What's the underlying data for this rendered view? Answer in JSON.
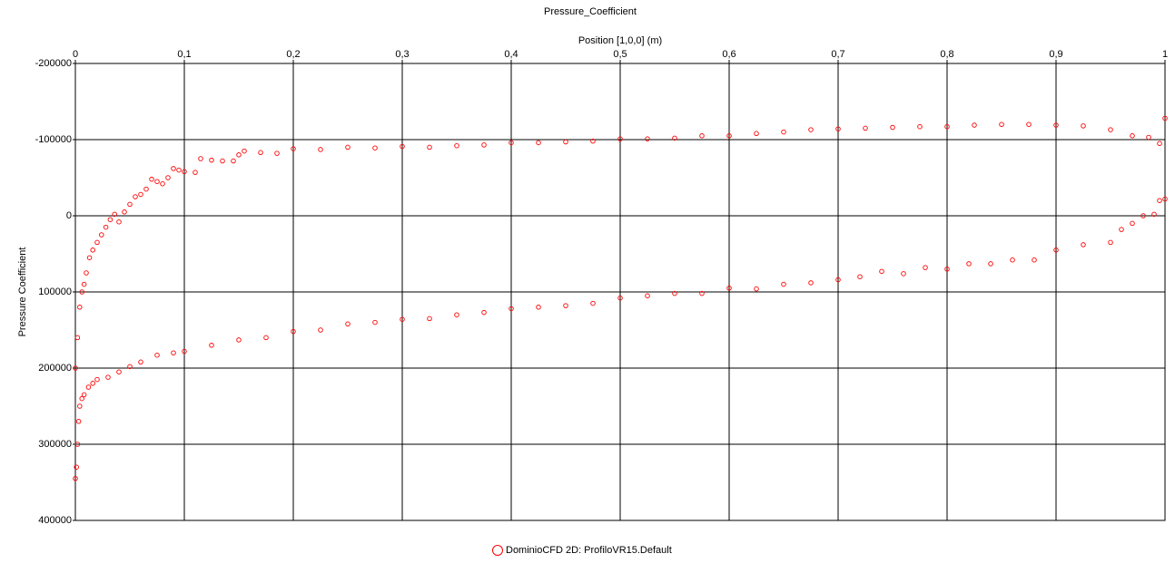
{
  "chart_data": {
    "type": "scatter",
    "title": "Pressure_Coefficient",
    "xlabel": "Position [1,0,0] (m)",
    "ylabel": "Pressure Coefficient",
    "xlim": [
      0,
      1
    ],
    "xticks": [
      0,
      {
        "value": 0.1,
        "label": "0,1"
      },
      {
        "value": 0.2,
        "label": "0,2"
      },
      {
        "value": 0.3,
        "label": "0,3"
      },
      {
        "value": 0.4,
        "label": "0,4"
      },
      {
        "value": 0.5,
        "label": "0,5"
      },
      {
        "value": 0.6,
        "label": "0,6"
      },
      {
        "value": 0.7,
        "label": "0,7"
      },
      {
        "value": 0.8,
        "label": "0,8"
      },
      {
        "value": 0.9,
        "label": "0,9"
      },
      1
    ],
    "ylim": [
      400000,
      -200000
    ],
    "yticks": [
      -200000,
      -100000,
      0,
      100000,
      200000,
      300000,
      400000
    ],
    "grid": true,
    "legend": "bottom",
    "series": [
      {
        "name": "DominioCFD 2D: ProfiloVR15.Default",
        "color": "#ff0000",
        "x": [
          0.0,
          0.002,
          0.004,
          0.006,
          0.008,
          0.01,
          0.013,
          0.016,
          0.02,
          0.024,
          0.028,
          0.032,
          0.036,
          0.04,
          0.045,
          0.05,
          0.055,
          0.06,
          0.065,
          0.07,
          0.075,
          0.08,
          0.085,
          0.09,
          0.095,
          0.1,
          0.11,
          0.115,
          0.125,
          0.135,
          0.145,
          0.15,
          0.155,
          0.17,
          0.185,
          0.2,
          0.225,
          0.25,
          0.275,
          0.3,
          0.325,
          0.35,
          0.375,
          0.4,
          0.425,
          0.45,
          0.475,
          0.5,
          0.525,
          0.55,
          0.575,
          0.6,
          0.625,
          0.65,
          0.675,
          0.7,
          0.725,
          0.75,
          0.775,
          0.8,
          0.825,
          0.85,
          0.875,
          0.9,
          0.925,
          0.95,
          0.97,
          0.985,
          0.995,
          1.0,
          0.0,
          0.001,
          0.002,
          0.003,
          0.004,
          0.006,
          0.008,
          0.012,
          0.016,
          0.02,
          0.03,
          0.04,
          0.05,
          0.06,
          0.075,
          0.09,
          0.1,
          0.125,
          0.15,
          0.175,
          0.2,
          0.225,
          0.25,
          0.275,
          0.3,
          0.325,
          0.35,
          0.375,
          0.4,
          0.425,
          0.45,
          0.475,
          0.5,
          0.525,
          0.55,
          0.575,
          0.6,
          0.625,
          0.65,
          0.675,
          0.7,
          0.72,
          0.74,
          0.76,
          0.78,
          0.8,
          0.82,
          0.84,
          0.86,
          0.88,
          0.9,
          0.925,
          0.95,
          0.96,
          0.97,
          0.98,
          0.99,
          0.995,
          1.0
        ],
        "values": [
          200000,
          160000,
          120000,
          100000,
          90000,
          75000,
          55000,
          45000,
          35000,
          25000,
          15000,
          5000,
          -2000,
          8000,
          -5000,
          -15000,
          -25000,
          -28000,
          -35000,
          -48000,
          -45000,
          -42000,
          -50000,
          -62000,
          -60000,
          -58000,
          -57000,
          -75000,
          -73000,
          -72000,
          -72000,
          -80000,
          -85000,
          -83000,
          -82000,
          -88000,
          -87000,
          -90000,
          -89000,
          -91000,
          -90000,
          -92000,
          -93000,
          -96000,
          -96000,
          -97000,
          -98000,
          -101000,
          -101000,
          -102000,
          -105000,
          -105000,
          -108000,
          -110000,
          -113000,
          -114000,
          -115000,
          -116000,
          -117000,
          -117000,
          -119000,
          -120000,
          -120000,
          -119000,
          -118000,
          -113000,
          -105000,
          -103000,
          -95000,
          -128000,
          345000,
          330000,
          300000,
          270000,
          250000,
          240000,
          235000,
          225000,
          220000,
          215000,
          212000,
          205000,
          198000,
          192000,
          183000,
          180000,
          178000,
          170000,
          163000,
          160000,
          152000,
          150000,
          142000,
          140000,
          136000,
          135000,
          130000,
          127000,
          122000,
          120000,
          118000,
          115000,
          108000,
          105000,
          102000,
          102000,
          95000,
          96000,
          90000,
          88000,
          84000,
          80000,
          73000,
          76000,
          68000,
          70000,
          63000,
          63000,
          58000,
          58000,
          45000,
          38000,
          35000,
          18000,
          10000,
          0,
          -2000,
          -20000,
          -22000
        ]
      }
    ]
  }
}
